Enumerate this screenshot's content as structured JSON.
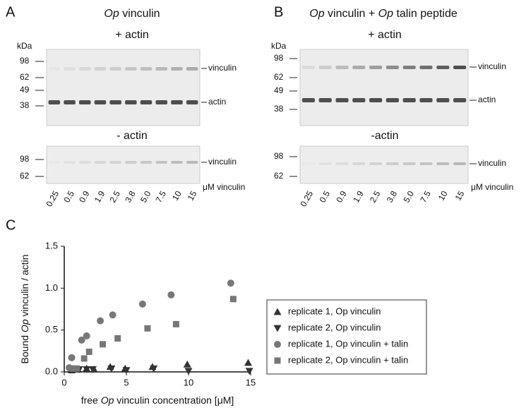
{
  "panel_a": {
    "letter": "A",
    "title": [
      "Op",
      " vinculin"
    ],
    "gel_top_label": "+ actin",
    "gel_bottom_label": "- actin",
    "kda": "kDa",
    "top_markers": [
      "98",
      "62",
      "49",
      "38"
    ],
    "bottom_markers": [
      "98",
      "62"
    ],
    "top_band_labels": [
      "vinculin",
      "actin"
    ],
    "bottom_band_label": "vinculin",
    "lanes": [
      "0.25",
      "0.5",
      "0.9",
      "1.9",
      "2.5",
      "3.8",
      "5.0",
      "7.5",
      "10",
      "15"
    ],
    "lane_unit": "μM vinculin"
  },
  "panel_b": {
    "letter": "B",
    "title": [
      "Op",
      " vinculin + ",
      "Op",
      " talin peptide"
    ],
    "gel_top_label": "+ actin",
    "gel_bottom_label": "-actin",
    "kda": "kDa",
    "top_markers": [
      "98",
      "62",
      "49",
      "38"
    ],
    "bottom_markers": [
      "98",
      "62"
    ],
    "top_band_labels": [
      "vinculin",
      "actin"
    ],
    "bottom_band_label": "vinculin",
    "lanes": [
      "0.25",
      "0.5",
      "0.9",
      "1.9",
      "2.5",
      "3.8",
      "5.0",
      "7.5",
      "10",
      "15"
    ],
    "lane_unit": "μM vinculin"
  },
  "chart_data": {
    "type": "scatter",
    "panel_letter": "C",
    "x_label": [
      "free ",
      "Op",
      " vinculin concentration [μM]"
    ],
    "y_label": [
      "Bound ",
      "Op",
      " vinculin / actin"
    ],
    "xlim": [
      0,
      15
    ],
    "xticks": [
      0,
      5,
      10,
      15
    ],
    "ylim": [
      0,
      1.5
    ],
    "yticks": [
      {
        "value": 0,
        "label": "0.0"
      },
      {
        "value": 0.5,
        "label": "0.5"
      },
      {
        "value": 1,
        "label": "1.0"
      },
      {
        "value": 1.5,
        "label": "1.5"
      }
    ],
    "series": [
      {
        "name": "replicate 1, Op vinculin",
        "color": "#333333",
        "marker": "triangle-up",
        "x": [
          0.6,
          1.1,
          1.8,
          2.4,
          3.7,
          4.9,
          7.1,
          9.9,
          14.8
        ],
        "values": [
          0.02,
          0.03,
          0.04,
          0.03,
          0.06,
          0.04,
          0.06,
          0.09,
          0.11
        ]
      },
      {
        "name": "replicate 2, Op vinculin",
        "color": "#333333",
        "marker": "triangle-down",
        "x": [
          0.7,
          1.2,
          1.8,
          2.3,
          3.8,
          5.0,
          7.2,
          10.0,
          14.9
        ],
        "values": [
          0.03,
          0.03,
          0.03,
          0.03,
          0.04,
          0.02,
          0.04,
          0.01,
          0.01
        ]
      },
      {
        "name": "replicate 1, Op vinculin + talin",
        "color": "#777777",
        "marker": "circle",
        "x": [
          0.4,
          0.6,
          1.4,
          1.8,
          2.9,
          3.9,
          6.3,
          8.6,
          13.4
        ],
        "values": [
          0.05,
          0.17,
          0.38,
          0.43,
          0.61,
          0.68,
          0.81,
          0.92,
          1.06
        ]
      },
      {
        "name": "replicate 2, Op vinculin + talin",
        "color": "#777777",
        "marker": "square",
        "x": [
          0.7,
          1.0,
          1.6,
          2.0,
          3.1,
          4.3,
          6.7,
          9.0,
          13.6
        ],
        "values": [
          0.04,
          0.04,
          0.16,
          0.24,
          0.33,
          0.4,
          0.52,
          0.57,
          0.87
        ]
      }
    ]
  }
}
